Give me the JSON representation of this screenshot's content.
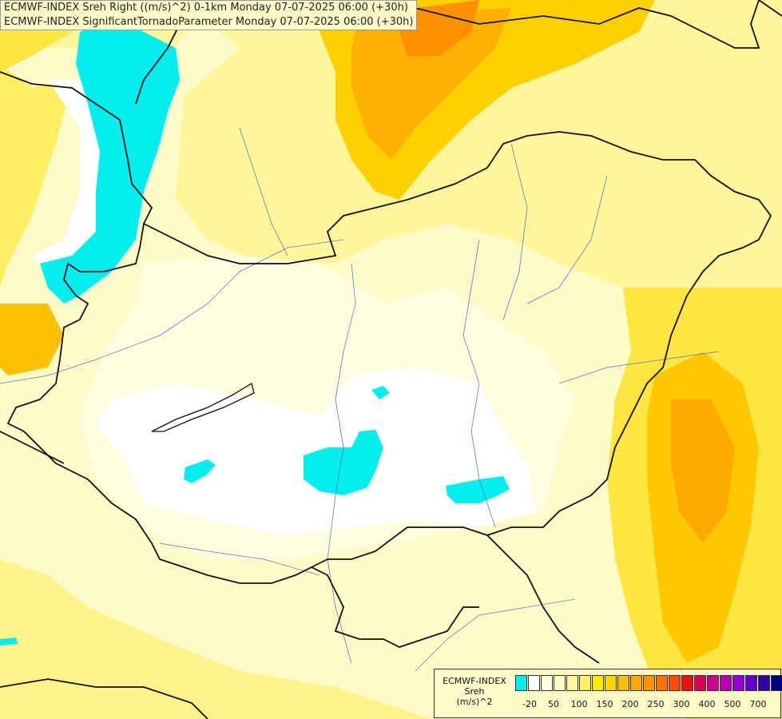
{
  "header": {
    "line1": "ECMWF-INDEX Sreh Right ((m/s)^2) 0-1km Monday 07-07-2025 06:00 (+30h)",
    "line2": "ECMWF-INDEX SignificantTornadoParameter Monday 07-07-2025 06:00 (+30h)"
  },
  "legend": {
    "title1": "ECMWF-INDEX",
    "title2": "Sreh",
    "unit": "(m/s)^2",
    "colors": [
      "#00eeee",
      "#ffffff",
      "#fffde0",
      "#fffbc8",
      "#fff59a",
      "#fff06a",
      "#ffe800",
      "#ffd400",
      "#ffbe00",
      "#ffa800",
      "#ff9200",
      "#ff7000",
      "#ff4a00",
      "#ee1010",
      "#e00050",
      "#d00090",
      "#b800b8",
      "#9000d8",
      "#6000d0",
      "#3000a8",
      "#000080"
    ],
    "ticks": [
      "-20",
      "50",
      "100",
      "150",
      "200",
      "250",
      "300",
      "400",
      "500",
      "700"
    ]
  }
}
